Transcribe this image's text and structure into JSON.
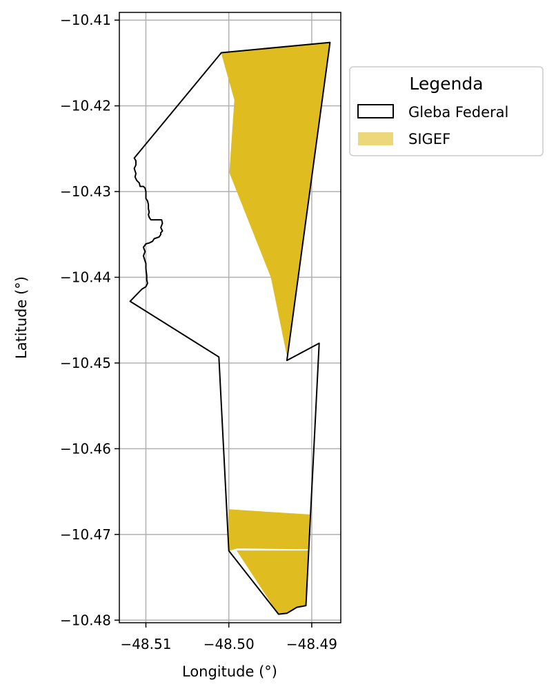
{
  "chart_data": {
    "type": "map",
    "title": "",
    "xlabel": "Longitude (°)",
    "ylabel": "Latitude (°)",
    "xlim": [
      -48.5132,
      -48.4865
    ],
    "ylim": [
      -10.4803,
      -10.4091
    ],
    "xticks": [
      -48.51,
      -48.5,
      -48.49
    ],
    "xtick_labels": [
      "−48.51",
      "−48.50",
      "−48.49"
    ],
    "yticks": [
      -10.41,
      -10.42,
      -10.43,
      -10.44,
      -10.45,
      -10.46,
      -10.47,
      -10.48
    ],
    "ytick_labels": [
      "−10.41",
      "−10.42",
      "−10.43",
      "−10.44",
      "−10.45",
      "−10.46",
      "−10.47",
      "−10.48"
    ],
    "grid": true,
    "legend": {
      "title": "Legenda",
      "placement": "outside-right-top",
      "entries": [
        {
          "label": "Gleba Federal",
          "style": "outline",
          "color": "#000000"
        },
        {
          "label": "SIGEF",
          "style": "fill",
          "color": "#dfbd21"
        }
      ]
    },
    "layers": [
      {
        "name": "Gleba Federal",
        "kind": "outline",
        "stroke": "#000000",
        "fill": "none",
        "polygons": [
          [
            [
              -48.5009,
              -10.4138
            ],
            [
              -48.4878,
              -10.4126
            ],
            [
              -48.493,
              -10.4497
            ],
            [
              -48.4891,
              -10.4477
            ],
            [
              -48.4907,
              -10.4783
            ],
            [
              -48.4918,
              -10.4785
            ],
            [
              -48.493,
              -10.4792
            ],
            [
              -48.494,
              -10.4793
            ],
            [
              -48.5,
              -10.4719
            ],
            [
              -48.5012,
              -10.4493
            ],
            [
              -48.5119,
              -10.4428
            ],
            [
              -48.5113,
              -10.4422
            ],
            [
              -48.5105,
              -10.4414
            ],
            [
              -48.51,
              -10.4411
            ],
            [
              -48.5098,
              -10.4407
            ],
            [
              -48.5099,
              -10.4403
            ],
            [
              -48.5099,
              -10.4398
            ],
            [
              -48.51,
              -10.439
            ],
            [
              -48.51,
              -10.4384
            ],
            [
              -48.5101,
              -10.4381
            ],
            [
              -48.5103,
              -10.4375
            ],
            [
              -48.5101,
              -10.437
            ],
            [
              -48.5103,
              -10.4365
            ],
            [
              -48.51,
              -10.4361
            ],
            [
              -48.5096,
              -10.436
            ],
            [
              -48.5092,
              -10.4358
            ],
            [
              -48.509,
              -10.4355
            ],
            [
              -48.5084,
              -10.4353
            ],
            [
              -48.5082,
              -10.435
            ],
            [
              -48.5082,
              -10.4348
            ],
            [
              -48.508,
              -10.4346
            ],
            [
              -48.5082,
              -10.4342
            ],
            [
              -48.508,
              -10.4337
            ],
            [
              -48.5081,
              -10.4333
            ],
            [
              -48.5094,
              -10.4333
            ],
            [
              -48.5096,
              -10.433
            ],
            [
              -48.5097,
              -10.4327
            ],
            [
              -48.5096,
              -10.4324
            ],
            [
              -48.5097,
              -10.432
            ],
            [
              -48.5097,
              -10.4315
            ],
            [
              -48.5098,
              -10.4311
            ],
            [
              -48.51,
              -10.4308
            ],
            [
              -48.51,
              -10.4305
            ],
            [
              -48.51,
              -10.43
            ],
            [
              -48.5101,
              -10.4296
            ],
            [
              -48.5103,
              -10.4294
            ],
            [
              -48.5107,
              -10.4294
            ],
            [
              -48.5108,
              -10.429
            ],
            [
              -48.5111,
              -10.4287
            ],
            [
              -48.5113,
              -10.4283
            ],
            [
              -48.5112,
              -10.4279
            ],
            [
              -48.5114,
              -10.4273
            ],
            [
              -48.5112,
              -10.4269
            ],
            [
              -48.5112,
              -10.4264
            ],
            [
              -48.5114,
              -10.4261
            ],
            [
              -48.5009,
              -10.4138
            ]
          ]
        ]
      },
      {
        "name": "SIGEF",
        "kind": "fill",
        "fill": "#dfbd21",
        "stroke": "none",
        "polygons": [
          [
            [
              -48.5009,
              -10.4138
            ],
            [
              -48.4878,
              -10.4126
            ],
            [
              -48.493,
              -10.449
            ],
            [
              -48.4949,
              -10.44
            ],
            [
              -48.4999,
              -10.4278
            ],
            [
              -48.4993,
              -10.4193
            ],
            [
              -48.5009,
              -10.4138
            ]
          ],
          [
            [
              -48.5,
              -10.4671
            ],
            [
              -48.4902,
              -10.4677
            ],
            [
              -48.4904,
              -10.4717
            ],
            [
              -48.499,
              -10.4716
            ],
            [
              -48.5,
              -10.4719
            ],
            [
              -48.5,
              -10.4671
            ]
          ],
          [
            [
              -48.499,
              -10.4719
            ],
            [
              -48.4904,
              -10.4719
            ],
            [
              -48.4907,
              -10.4783
            ],
            [
              -48.4918,
              -10.4785
            ],
            [
              -48.493,
              -10.4792
            ],
            [
              -48.494,
              -10.4793
            ],
            [
              -48.499,
              -10.4719
            ]
          ]
        ]
      }
    ]
  }
}
